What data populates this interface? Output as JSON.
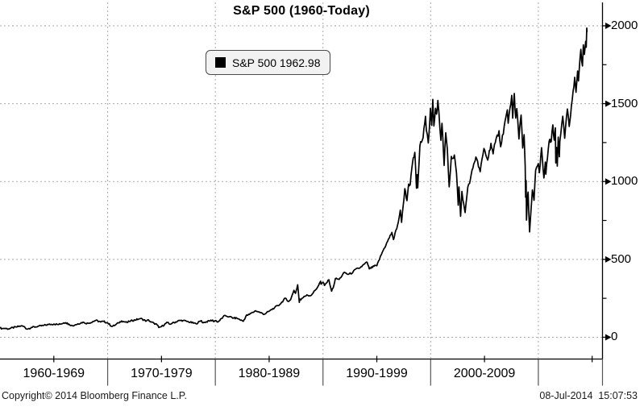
{
  "title": "S&P 500 (1960-Today)",
  "legend": {
    "marker": "black-square",
    "label": "S&P 500 1962.98"
  },
  "footer": {
    "copyright": "Copyright© 2014 Bloomberg Finance L.P.",
    "timestamp": "08-Jul-2014  15:07:53"
  },
  "chart_data": {
    "type": "line",
    "title": "S&P 500 (1960-Today)",
    "legend_position": "top-left-inside",
    "grid": {
      "style": "dotted",
      "color": "#a9a9a9"
    },
    "colors": {
      "line": "#000000",
      "axis": "#000000",
      "legend_bg": "#f2f2f2"
    },
    "x_axis": {
      "range": [
        1960,
        2015.96
      ],
      "decade_labels": [
        "1960-1969",
        "1970-1979",
        "1980-1989",
        "1990-1999",
        "2000-2009"
      ],
      "decade_starts": [
        1960,
        1970,
        1980,
        1990,
        2000
      ],
      "major_ticks": [
        1970,
        1980,
        1990,
        2000,
        2010
      ],
      "minor_ticks": [
        1965,
        1975,
        1985,
        1995,
        2005,
        2015
      ]
    },
    "y_axis": {
      "side": "right",
      "range": [
        -140,
        2150
      ],
      "major_ticks": [
        0,
        500,
        1000,
        1500,
        2000
      ],
      "minor_ticks": [
        250,
        750,
        1250,
        1750
      ]
    },
    "series": [
      {
        "name": "S&P 500",
        "last_value": 1962.98,
        "color": "#000000",
        "points": [
          [
            1960.0,
            59.9
          ],
          [
            1960.2,
            55.7
          ],
          [
            1960.45,
            57.3
          ],
          [
            1960.8,
            53.4
          ],
          [
            1961.0,
            58.1
          ],
          [
            1961.5,
            65.7
          ],
          [
            1961.95,
            72.6
          ],
          [
            1962.2,
            69.6
          ],
          [
            1962.5,
            52.3
          ],
          [
            1962.7,
            56.3
          ],
          [
            1962.9,
            62.6
          ],
          [
            1963.5,
            69.4
          ],
          [
            1964.0,
            75.0
          ],
          [
            1964.5,
            81.7
          ],
          [
            1965.0,
            84.8
          ],
          [
            1965.45,
            81.6
          ],
          [
            1965.9,
            92.4
          ],
          [
            1966.1,
            93.8
          ],
          [
            1966.4,
            84.7
          ],
          [
            1966.75,
            73.2
          ],
          [
            1967.0,
            80.3
          ],
          [
            1967.7,
            96.7
          ],
          [
            1967.85,
            91.7
          ],
          [
            1968.2,
            89.1
          ],
          [
            1968.9,
            108.4
          ],
          [
            1969.35,
            97.9
          ],
          [
            1969.6,
            102.0
          ],
          [
            1970.0,
            92.1
          ],
          [
            1970.4,
            69.3
          ],
          [
            1970.7,
            78.1
          ],
          [
            1971.0,
            92.2
          ],
          [
            1971.3,
            104.8
          ],
          [
            1971.8,
            94.2
          ],
          [
            1972.0,
            102.1
          ],
          [
            1972.95,
            118.1
          ],
          [
            1973.05,
            120.2
          ],
          [
            1973.6,
            104.0
          ],
          [
            1973.8,
            111.0
          ],
          [
            1974.0,
            97.6
          ],
          [
            1974.3,
            90.3
          ],
          [
            1974.6,
            79.3
          ],
          [
            1974.75,
            62.3
          ],
          [
            1975.0,
            68.6
          ],
          [
            1975.55,
            95.2
          ],
          [
            1975.75,
            83.9
          ],
          [
            1976.0,
            90.2
          ],
          [
            1976.7,
            107.8
          ],
          [
            1977.0,
            107.5
          ],
          [
            1977.5,
            99.3
          ],
          [
            1978.2,
            86.9
          ],
          [
            1978.7,
            107.0
          ],
          [
            1978.85,
            92.5
          ],
          [
            1979.0,
            96.1
          ],
          [
            1979.75,
            110.2
          ],
          [
            1979.85,
            99.9
          ],
          [
            1980.0,
            107.9
          ],
          [
            1980.25,
            98.2
          ],
          [
            1980.9,
            140.5
          ],
          [
            1981.0,
            135.8
          ],
          [
            1981.3,
            132.0
          ],
          [
            1981.7,
            122.8
          ],
          [
            1982.0,
            122.6
          ],
          [
            1982.6,
            102.4
          ],
          [
            1982.9,
            143.0
          ],
          [
            1983.0,
            140.6
          ],
          [
            1983.75,
            170.1
          ],
          [
            1984.0,
            163.4
          ],
          [
            1984.55,
            147.8
          ],
          [
            1985.0,
            167.2
          ],
          [
            1985.5,
            189.6
          ],
          [
            1986.0,
            211.3
          ],
          [
            1986.5,
            250.8
          ],
          [
            1986.72,
            231.3
          ],
          [
            1987.0,
            242.2
          ],
          [
            1987.3,
            301.4
          ],
          [
            1987.45,
            282.0
          ],
          [
            1987.65,
            336.8
          ],
          [
            1987.8,
            223.9
          ],
          [
            1987.85,
            245.0
          ],
          [
            1987.95,
            240.0
          ],
          [
            1988.0,
            247.1
          ],
          [
            1988.5,
            272.0
          ],
          [
            1988.85,
            266.5
          ],
          [
            1989.0,
            277.7
          ],
          [
            1989.5,
            322.0
          ],
          [
            1989.78,
            359.8
          ],
          [
            1989.82,
            340.4
          ],
          [
            1990.0,
            353.4
          ],
          [
            1990.15,
            332.7
          ],
          [
            1990.55,
            368.9
          ],
          [
            1990.8,
            295.5
          ],
          [
            1991.0,
            330.2
          ],
          [
            1991.15,
            376.7
          ],
          [
            1991.5,
            371.2
          ],
          [
            1992.0,
            417.1
          ],
          [
            1992.3,
            403.7
          ],
          [
            1992.75,
            414.0
          ],
          [
            1993.0,
            435.7
          ],
          [
            1993.35,
            442.0
          ],
          [
            1994.1,
            482.0
          ],
          [
            1994.3,
            438.9
          ],
          [
            1994.9,
            461.0
          ],
          [
            1995.0,
            459.3
          ],
          [
            1995.5,
            544.8
          ],
          [
            1996.0,
            615.9
          ],
          [
            1996.4,
            673.3
          ],
          [
            1996.55,
            626.7
          ],
          [
            1997.0,
            740.7
          ],
          [
            1997.18,
            816.3
          ],
          [
            1997.3,
            737.6
          ],
          [
            1997.6,
            954.3
          ],
          [
            1997.8,
            877.0
          ],
          [
            1997.95,
            983.8
          ],
          [
            1998.1,
            980.0
          ],
          [
            1998.3,
            1111.8
          ],
          [
            1998.53,
            1186.8
          ],
          [
            1998.68,
            957.3
          ],
          [
            1998.75,
            1044.0
          ],
          [
            1998.8,
            959.4
          ],
          [
            1999.0,
            1229.2
          ],
          [
            1999.3,
            1282.0
          ],
          [
            1999.52,
            1418.8
          ],
          [
            1999.6,
            1328.0
          ],
          [
            1999.78,
            1247.4
          ],
          [
            1999.98,
            1469.3
          ],
          [
            2000.1,
            1360.2
          ],
          [
            2000.2,
            1527.5
          ],
          [
            2000.3,
            1356.6
          ],
          [
            2000.45,
            1470.0
          ],
          [
            2000.55,
            1432.6
          ],
          [
            2000.67,
            1520.8
          ],
          [
            2000.95,
            1264.7
          ],
          [
            2001.05,
            1373.7
          ],
          [
            2001.25,
            1103.3
          ],
          [
            2001.4,
            1312.8
          ],
          [
            2001.55,
            1207.7
          ],
          [
            2001.72,
            965.8
          ],
          [
            2001.92,
            1161.0
          ],
          [
            2002.05,
            1148.1
          ],
          [
            2002.2,
            1170.3
          ],
          [
            2002.4,
            1054.0
          ],
          [
            2002.56,
            847.8
          ],
          [
            2002.63,
            965.0
          ],
          [
            2002.78,
            776.8
          ],
          [
            2002.9,
            936.3
          ],
          [
            2003.0,
            879.8
          ],
          [
            2003.2,
            800.7
          ],
          [
            2003.45,
            963.6
          ],
          [
            2003.7,
            1018.0
          ],
          [
            2004.0,
            1111.9
          ],
          [
            2004.2,
            1157.0
          ],
          [
            2004.6,
            1063.2
          ],
          [
            2004.95,
            1211.9
          ],
          [
            2005.3,
            1137.5
          ],
          [
            2005.6,
            1245.0
          ],
          [
            2005.8,
            1177.7
          ],
          [
            2006.0,
            1248.3
          ],
          [
            2006.35,
            1325.8
          ],
          [
            2006.5,
            1223.7
          ],
          [
            2007.0,
            1418.3
          ],
          [
            2007.12,
            1459.7
          ],
          [
            2007.2,
            1374.1
          ],
          [
            2007.53,
            1553.1
          ],
          [
            2007.62,
            1406.7
          ],
          [
            2007.77,
            1565.2
          ],
          [
            2007.9,
            1407.2
          ],
          [
            2008.0,
            1468.4
          ],
          [
            2008.2,
            1273.4
          ],
          [
            2008.4,
            1426.6
          ],
          [
            2008.55,
            1214.9
          ],
          [
            2008.68,
            1300.7
          ],
          [
            2008.78,
            1099.2
          ],
          [
            2008.82,
            899.2
          ],
          [
            2008.87,
            1005.8
          ],
          [
            2008.9,
            752.4
          ],
          [
            2009.0,
            903.3
          ],
          [
            2009.05,
            931.8
          ],
          [
            2009.19,
            676.5
          ],
          [
            2009.45,
            946.2
          ],
          [
            2009.6,
            879.1
          ],
          [
            2009.75,
            1071.7
          ],
          [
            2010.0,
            1115.1
          ],
          [
            2010.1,
            1056.7
          ],
          [
            2010.3,
            1217.3
          ],
          [
            2010.52,
            1022.6
          ],
          [
            2010.65,
            1125.0
          ],
          [
            2010.7,
            1047.2
          ],
          [
            2011.0,
            1257.6
          ],
          [
            2011.2,
            1256.9
          ],
          [
            2011.35,
            1363.6
          ],
          [
            2011.48,
            1265.4
          ],
          [
            2011.58,
            1345.0
          ],
          [
            2011.62,
            1119.5
          ],
          [
            2011.7,
            1218.9
          ],
          [
            2011.76,
            1099.2
          ],
          [
            2011.85,
            1285.1
          ],
          [
            2011.95,
            1158.7
          ],
          [
            2012.0,
            1257.6
          ],
          [
            2012.27,
            1419.0
          ],
          [
            2012.45,
            1278.0
          ],
          [
            2012.7,
            1465.8
          ],
          [
            2012.87,
            1353.3
          ],
          [
            2013.0,
            1426.2
          ],
          [
            2013.38,
            1669.2
          ],
          [
            2013.5,
            1573.1
          ],
          [
            2013.65,
            1709.7
          ],
          [
            2013.73,
            1646.1
          ],
          [
            2013.95,
            1848.4
          ],
          [
            2014.1,
            1741.9
          ],
          [
            2014.18,
            1878.0
          ],
          [
            2014.28,
            1815.7
          ],
          [
            2014.4,
            1900.5
          ],
          [
            2014.45,
            1862.3
          ],
          [
            2014.5,
            1985.4
          ],
          [
            2014.52,
            1962.98
          ]
        ]
      }
    ]
  }
}
